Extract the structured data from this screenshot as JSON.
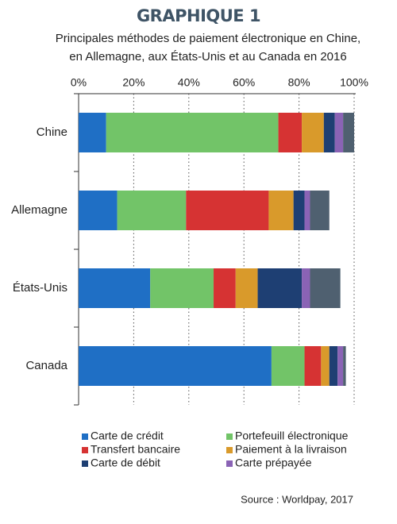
{
  "chart_data": {
    "type": "stacked-bar-horizontal",
    "title": "GRAPHIQUE 1",
    "subtitle": [
      "Principales méthodes de paiement électronique en Chine,",
      "en Allemagne, aux États-Unis et au Canada en 2016"
    ],
    "categories": [
      "Chine",
      "Allemagne",
      "États-Unis",
      "Canada"
    ],
    "series": [
      {
        "name": "Carte de crédit",
        "color": "#1f6fc5",
        "values": [
          10,
          14,
          26,
          70
        ]
      },
      {
        "name": "Portefeuill électronique",
        "color": "#72c468",
        "values": [
          62.5,
          25,
          23,
          12
        ]
      },
      {
        "name": "Transfert bancaire",
        "color": "#d63333",
        "values": [
          8.5,
          30,
          8,
          6
        ]
      },
      {
        "name": "Paiement à la livraison",
        "color": "#d99a2b",
        "values": [
          8,
          9,
          8,
          3
        ]
      },
      {
        "name": "Carte de débit",
        "color": "#1e3f73",
        "values": [
          4,
          4,
          16,
          3
        ]
      },
      {
        "name": "Carte prépayée",
        "color": "#8a63b5",
        "values": [
          3,
          2,
          3,
          2
        ]
      },
      {
        "name": null,
        "color": "#4f6070",
        "values": [
          4,
          7,
          11,
          1
        ]
      }
    ],
    "xlim": [
      0,
      100
    ],
    "xticks": [
      {
        "value": 0,
        "label": "0%"
      },
      {
        "value": 20,
        "label": "20%"
      },
      {
        "value": 40,
        "label": "40%"
      },
      {
        "value": 60,
        "label": "60%"
      },
      {
        "value": 80,
        "label": "80%"
      },
      {
        "value": 100,
        "label": "100%"
      }
    ],
    "grid": true,
    "source": "Source : Worldpay, 2017"
  }
}
